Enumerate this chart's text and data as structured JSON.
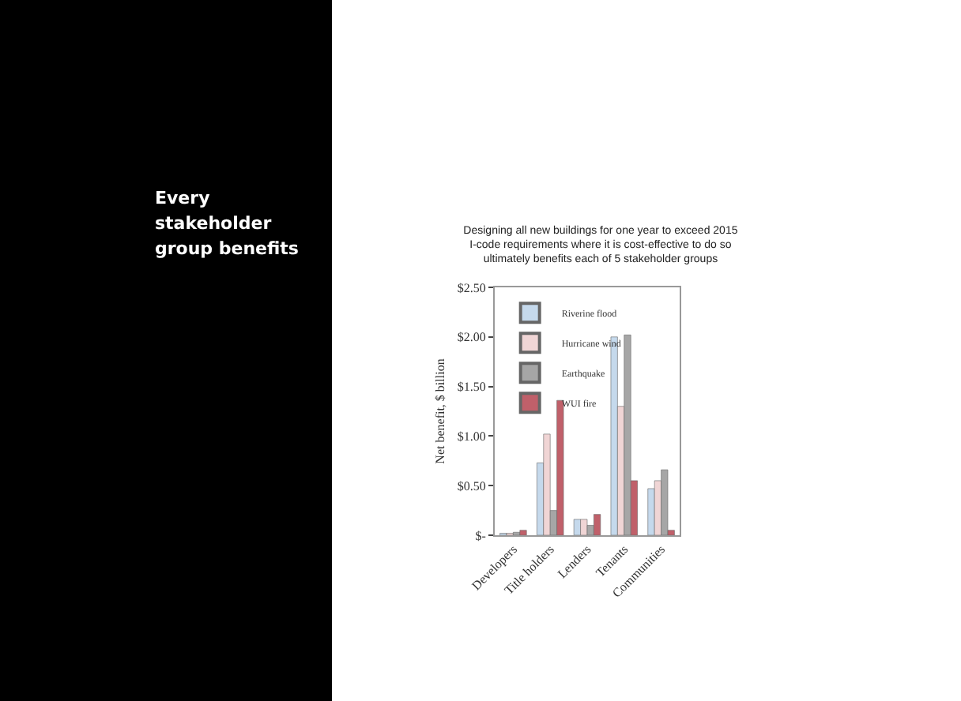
{
  "chart_data": {
    "type": "bar",
    "title": "Designing all new buildings for one year to exceed 2015 I-code requirements where it is cost-effective to do so ultimately benefits each of 5 stakeholder groups",
    "ylabel": "Net benefit, $ billion",
    "annotations": [
      "Every stakeholder group benefits"
    ],
    "categories": [
      "Developers",
      "Title holders",
      "Lenders",
      "Tenants",
      "Communities"
    ],
    "series": [
      {
        "name": "Riverine flood",
        "color": "#c5d9ec",
        "values": [
          0.02,
          0.73,
          0.16,
          2.0,
          0.47
        ]
      },
      {
        "name": "Hurricane wind",
        "color": "#f0d5d5",
        "values": [
          0.02,
          1.02,
          0.16,
          1.3,
          0.55
        ]
      },
      {
        "name": "Earthquake",
        "color": "#a6a6a6",
        "values": [
          0.03,
          0.25,
          0.1,
          2.02,
          0.66
        ]
      },
      {
        "name": "WUI fire",
        "color": "#c0606a",
        "values": [
          0.05,
          1.36,
          0.21,
          0.55,
          0.05
        ]
      }
    ],
    "ylim": [
      0,
      2.5
    ],
    "yticks": [
      {
        "value": 0,
        "label": "$-"
      },
      {
        "value": 0.5,
        "label": "$0.50"
      },
      {
        "value": 1,
        "label": "$1.00"
      },
      {
        "value": 1.5,
        "label": "$1.50"
      },
      {
        "value": 2,
        "label": "$2.00"
      },
      {
        "value": 2.5,
        "label": "$2.50"
      }
    ],
    "legend": "top left",
    "grid": false
  }
}
